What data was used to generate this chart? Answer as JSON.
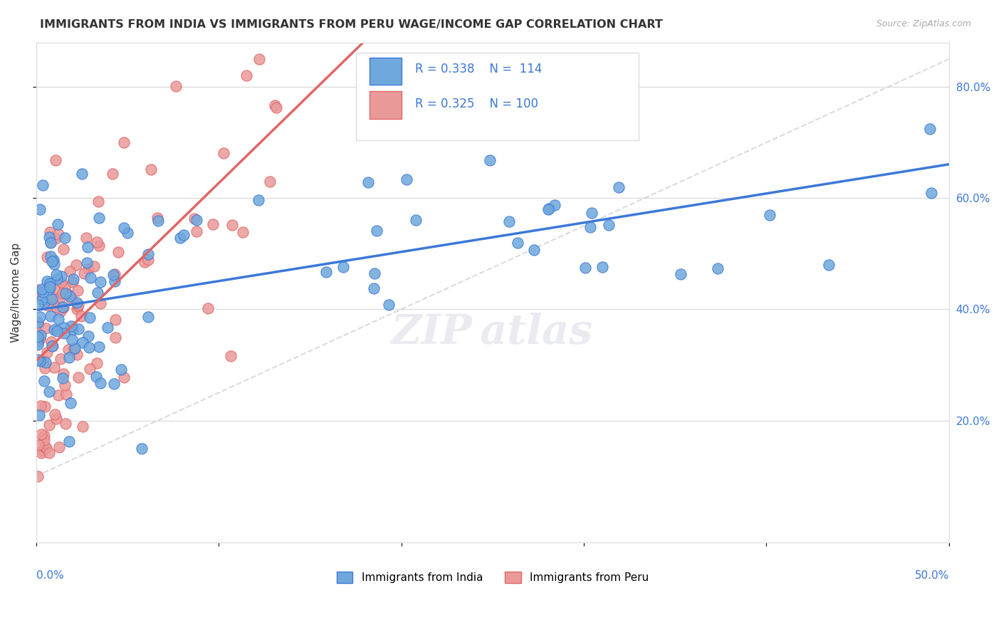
{
  "title": "IMMIGRANTS FROM INDIA VS IMMIGRANTS FROM PERU WAGE/INCOME GAP CORRELATION CHART",
  "source_text": "Source: ZipAtlas.com",
  "ylabel": "Wage/Income Gap",
  "right_yticks": [
    0.2,
    0.4,
    0.6,
    0.8
  ],
  "right_ytick_labels": [
    "20.0%",
    "40.0%",
    "60.0%",
    "80.0%"
  ],
  "xlim": [
    0.0,
    0.5
  ],
  "ylim": [
    -0.02,
    0.88
  ],
  "india_color": "#6fa8dc",
  "india_color_line": "#3c78d8",
  "peru_color": "#ea9999",
  "peru_color_line": "#e06666",
  "legend_india_R": "0.338",
  "legend_india_N": "114",
  "legend_peru_R": "0.325",
  "legend_peru_N": "100",
  "grid_color": "#dddddd",
  "background_color": "#ffffff",
  "diag_line_color": "#cccccc",
  "watermark_color": "#e8e8f0"
}
